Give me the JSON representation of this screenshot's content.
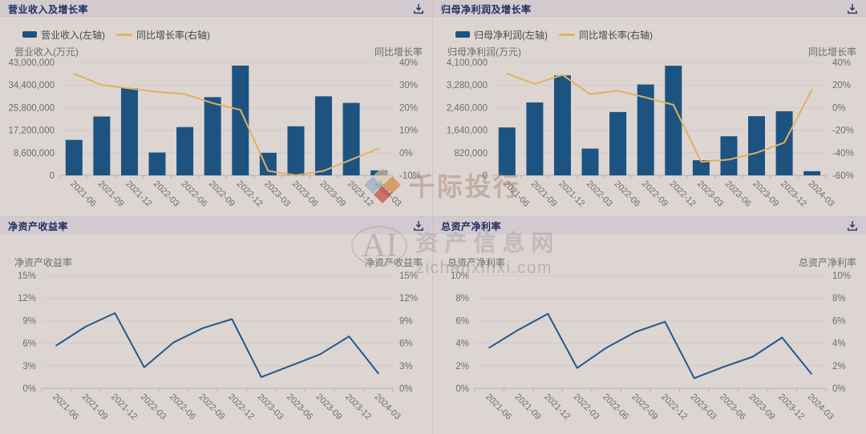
{
  "colors": {
    "background": "#ddd5d1",
    "header_strip": "#d2cacf",
    "title_text": "#1c2b5f",
    "bar": "#1d5381",
    "growth_line": "#dfb35e",
    "ratio_line": "#24588a",
    "tick_text": "#6f6b74",
    "grid_line": "#d2c9ce",
    "axis_line": "#b7aeb3"
  },
  "icons": {
    "download": "tray-with-down-arrow"
  },
  "watermarks": {
    "qianji": {
      "text": "千际投行"
    },
    "center": {
      "logo": "AI",
      "line1": "资产信息网",
      "line2": "zichanxinxi.com"
    }
  },
  "chart_data": [
    {
      "type": "bar+line",
      "title": "营业收入及增长率",
      "legend": [
        "营业收入(左轴)",
        "同比增长率(右轴)"
      ],
      "categories": [
        "2021-06",
        "2021-09",
        "2021-12",
        "2022-03",
        "2022-06",
        "2022-09",
        "2022-12",
        "2023-03",
        "2023-06",
        "2023-09",
        "2023-12",
        "2024-03"
      ],
      "series": [
        {
          "name": "营业收入(左轴)",
          "type": "bar",
          "axis": "left",
          "color": "#1d5381",
          "values": [
            13500000,
            22400000,
            33200000,
            8700000,
            18400000,
            29800000,
            41800000,
            8600000,
            18700000,
            30100000,
            27600000,
            1900000
          ]
        },
        {
          "name": "同比增长率(右轴)",
          "type": "line",
          "axis": "right",
          "color": "#dfb35e",
          "values": [
            35,
            30,
            28.5,
            27,
            26,
            22,
            19,
            -8,
            -10,
            -8,
            -3,
            2
          ]
        }
      ],
      "left_axis": {
        "name": "营业收入(万元)",
        "min": 0,
        "max": 43000000,
        "ticks": [
          "43,000,000",
          "34,400,000",
          "25,800,000",
          "17,200,000",
          "8,600,000",
          "0"
        ]
      },
      "right_axis": {
        "name": "同比增长率",
        "min": -10,
        "max": 40,
        "ticks": [
          "40%",
          "30%",
          "20%",
          "10%",
          "0%",
          "-10%"
        ]
      }
    },
    {
      "type": "bar+line",
      "title": "归母净利润及增长率",
      "legend": [
        "归母净利润(左轴)",
        "同比增长率(右轴)"
      ],
      "categories": [
        "2021-06",
        "2021-09",
        "2021-12",
        "2022-03",
        "2022-06",
        "2022-09",
        "2022-12",
        "2023-03",
        "2023-06",
        "2023-09",
        "2023-12",
        "2024-03"
      ],
      "series": [
        {
          "name": "归母净利润(左轴)",
          "type": "bar",
          "axis": "left",
          "color": "#1d5381",
          "values": [
            1740000,
            2650000,
            3630000,
            970000,
            2300000,
            3300000,
            3980000,
            550000,
            1420000,
            2150000,
            2330000,
            150000
          ]
        },
        {
          "name": "同比增长率(右轴)",
          "type": "line",
          "axis": "right",
          "color": "#dfb35e",
          "values": [
            30,
            21,
            29,
            12,
            15,
            9,
            2.5,
            -48,
            -46,
            -40,
            -31,
            16
          ]
        }
      ],
      "left_axis": {
        "name": "归母净利润(万元)",
        "min": 0,
        "max": 4100000,
        "ticks": [
          "4,100,000",
          "3,280,000",
          "2,460,000",
          "1,640,000",
          "820,000",
          "0"
        ]
      },
      "right_axis": {
        "name": "同比增长率",
        "min": -60,
        "max": 40,
        "ticks": [
          "40%",
          "20%",
          "0%",
          "-20%",
          "-40%",
          "-60%"
        ]
      }
    },
    {
      "type": "line",
      "title": "净资产收益率",
      "categories": [
        "2021-06",
        "2021-09",
        "2021-12",
        "2022-03",
        "2022-06",
        "2022-09",
        "2022-12",
        "2023-03",
        "2023-06",
        "2023-09",
        "2023-12",
        "2024-03"
      ],
      "series": [
        {
          "name": "净资产收益率",
          "type": "line",
          "axis": "left",
          "color": "#24588a",
          "values": [
            5.7,
            8.2,
            10.0,
            2.8,
            6.1,
            8.0,
            9.2,
            1.5,
            3.0,
            4.5,
            6.9,
            2.0
          ]
        }
      ],
      "left_axis": {
        "name": "净资产收益率",
        "min": 0,
        "max": 15,
        "ticks": [
          "15%",
          "12%",
          "9%",
          "6%",
          "3%",
          "0%"
        ]
      },
      "right_axis": {
        "name": "净资产收益率",
        "min": 0,
        "max": 15,
        "ticks": [
          "15%",
          "12%",
          "9%",
          "6%",
          "3%",
          "0%"
        ]
      }
    },
    {
      "type": "line",
      "title": "总资产净利率",
      "categories": [
        "2021-06",
        "2021-09",
        "2021-12",
        "2022-03",
        "2022-06",
        "2022-09",
        "2022-12",
        "2023-03",
        "2023-06",
        "2023-09",
        "2023-12",
        "2024-03"
      ],
      "series": [
        {
          "name": "总资产净利率",
          "type": "line",
          "axis": "left",
          "color": "#24588a",
          "values": [
            3.6,
            5.2,
            6.6,
            1.8,
            3.6,
            5.0,
            5.9,
            0.9,
            1.9,
            2.8,
            4.5,
            1.3
          ]
        }
      ],
      "left_axis": {
        "name": "总资产净利率",
        "min": 0,
        "max": 10,
        "ticks": [
          "10%",
          "8%",
          "6%",
          "4%",
          "2%",
          "0%"
        ]
      },
      "right_axis": {
        "name": "总资产净利率",
        "min": 0,
        "max": 10,
        "ticks": [
          "10%",
          "8%",
          "6%",
          "4%",
          "2%",
          "0%"
        ]
      }
    }
  ]
}
